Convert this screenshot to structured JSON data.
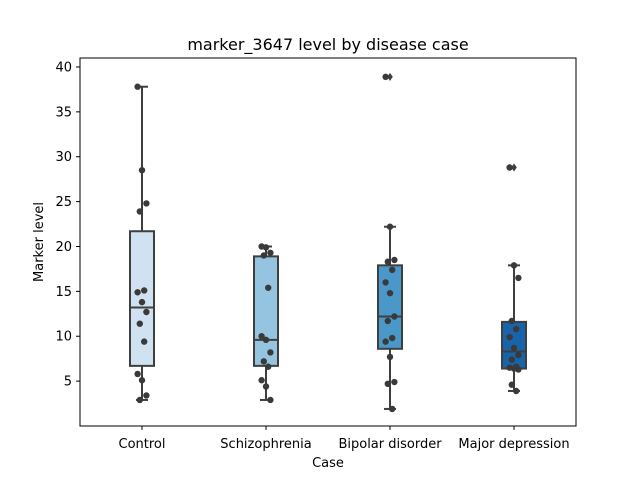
{
  "chart_data": {
    "type": "box",
    "title": "marker_3647 level by disease case",
    "xlabel": "Case",
    "ylabel": "Marker level",
    "ylim": [
      0,
      41
    ],
    "yticks": [
      5,
      10,
      15,
      20,
      25,
      30,
      35,
      40
    ],
    "grid": false,
    "legend": "none",
    "categories": [
      "Control",
      "Schizophrenia",
      "Bipolar disorder",
      "Major depression"
    ],
    "colors": [
      "#d0e1f2",
      "#94c4df",
      "#4a98c9",
      "#1764ab"
    ],
    "edge_color": "#3f3f3f",
    "point_color": "#3a3a3a",
    "boxes": [
      {
        "whislo": 2.9,
        "q1": 6.7,
        "med": 13.2,
        "q3": 21.7,
        "whishi": 37.8,
        "fliers": []
      },
      {
        "whislo": 2.9,
        "q1": 6.7,
        "med": 9.6,
        "q3": 18.9,
        "whishi": 20.0,
        "fliers": []
      },
      {
        "whislo": 1.9,
        "q1": 8.6,
        "med": 12.2,
        "q3": 17.9,
        "whishi": 22.2,
        "fliers": [
          38.9
        ]
      },
      {
        "whislo": 3.9,
        "q1": 6.4,
        "med": 8.3,
        "q3": 11.6,
        "whishi": 17.9,
        "fliers": [
          28.8
        ]
      }
    ],
    "points": [
      [
        37.8,
        28.5,
        24.8,
        23.9,
        15.1,
        14.9,
        13.8,
        12.7,
        11.4,
        9.4,
        5.8,
        5.1,
        3.4,
        2.9
      ],
      [
        20.0,
        19.9,
        19.3,
        19.0,
        15.4,
        10.0,
        9.6,
        8.2,
        7.2,
        6.6,
        5.1,
        4.4,
        2.9
      ],
      [
        38.9,
        22.2,
        18.5,
        18.3,
        17.4,
        16.0,
        14.8,
        12.2,
        11.7,
        9.8,
        9.4,
        7.7,
        4.9,
        4.7,
        1.9
      ],
      [
        28.8,
        17.9,
        16.5,
        11.7,
        10.8,
        9.9,
        8.7,
        7.9,
        7.4,
        6.6,
        6.5,
        6.4,
        6.3,
        4.6,
        3.9
      ]
    ]
  }
}
